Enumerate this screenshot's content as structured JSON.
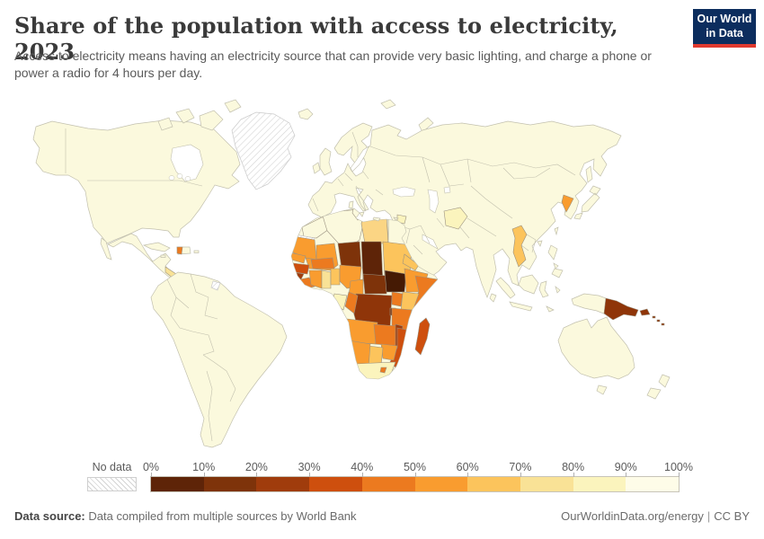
{
  "header": {
    "title": "Share of the population with access to electricity, 2023",
    "subtitle": "Access to electricity means having an electricity source that can provide very basic lighting, and charge a phone or power a radio for 4 hours per day.",
    "logo": {
      "line1": "Our World",
      "line2": "in Data",
      "bg_color": "#0c2d5e",
      "accent_color": "#e0392f"
    }
  },
  "legend": {
    "no_data_label": "No data",
    "ticks": [
      "0%",
      "10%",
      "20%",
      "30%",
      "40%",
      "50%",
      "60%",
      "70%",
      "80%",
      "90%",
      "100%"
    ],
    "bin_colors": [
      "#5e2408",
      "#7e330a",
      "#a03c0c",
      "#ce4f0e",
      "#ec7a1f",
      "#f99c2f",
      "#fcc45c",
      "#f9e296",
      "#fbf4bd",
      "#fefce8"
    ]
  },
  "footer": {
    "datasource_label": "Data source:",
    "datasource_value": "Data compiled from multiple sources by World Bank",
    "link": "OurWorldinData.org/energy",
    "separator": "|",
    "license": "CC BY"
  },
  "map": {
    "ocean_color": "#ffffff",
    "default_land_color": "#fbf9dd",
    "border_color": "#c2c0ae",
    "no_data_color": "#ffffff"
  },
  "chart_data": {
    "type": "choropleth",
    "title": "Share of the population with access to electricity, 2023",
    "unit": "% of population with electricity access",
    "year": 2023,
    "bins": [
      "0-10%",
      "10-20%",
      "20-30%",
      "30-40%",
      "40-50%",
      "50-60%",
      "60-70%",
      "70-80%",
      "80-90%",
      "90-100%"
    ],
    "default_region_value": "90-100%",
    "regions": {
      "greenland": {
        "label": "Greenland",
        "value": "No data",
        "color": "#ffffff"
      },
      "western_sahara": {
        "label": "Western Sahara",
        "value": "No data",
        "color": "#ffffff"
      },
      "french_guiana": {
        "label": "French Guiana",
        "value": "No data",
        "color": "#ffffff"
      },
      "south_sudan": {
        "label": "South Sudan",
        "value": "0-10%",
        "color": "#451a04"
      },
      "chad": {
        "label": "Chad",
        "value": "0-10%",
        "color": "#5e2408"
      },
      "niger": {
        "label": "Niger",
        "value": "10-20%",
        "color": "#7e330a"
      },
      "car": {
        "label": "Central African Republic",
        "value": "10-20%",
        "color": "#7e330a"
      },
      "burundi": {
        "label": "Burundi",
        "value": "10-20%",
        "color": "#7e330a"
      },
      "drc": {
        "label": "Democratic Republic of Congo",
        "value": "20-30%",
        "color": "#8f3509"
      },
      "papua_new_guinea": {
        "label": "Papua New Guinea",
        "value": "20-30%",
        "color": "#8f3509"
      },
      "solomon_islands": {
        "label": "Solomon Islands",
        "value": "20-30%",
        "color": "#8f3509"
      },
      "sierra_leone": {
        "label": "Sierra Leone",
        "value": "20-30%",
        "color": "#a03c0c"
      },
      "malawi": {
        "label": "Malawi",
        "value": "20-30%",
        "color": "#a03c0c"
      },
      "guinea": {
        "label": "Guinea",
        "value": "30-40%",
        "color": "#ce4f0e"
      },
      "mozambique": {
        "label": "Mozambique",
        "value": "30-40%",
        "color": "#ce4f0e"
      },
      "madagascar": {
        "label": "Madagascar",
        "value": "30-40%",
        "color": "#ce4f0e"
      },
      "liberia": {
        "label": "Liberia",
        "value": "40-50%",
        "color": "#ec7a1f"
      },
      "burkina_faso": {
        "label": "Burkina Faso",
        "value": "40-50%",
        "color": "#ec7a1f"
      },
      "somalia": {
        "label": "Somalia",
        "value": "40-50%",
        "color": "#ec7a1f"
      },
      "uganda": {
        "label": "Uganda",
        "value": "40-50%",
        "color": "#ec7a1f"
      },
      "tanzania": {
        "label": "Tanzania",
        "value": "40-50%",
        "color": "#ec7a1f"
      },
      "zambia": {
        "label": "Zambia",
        "value": "40-50%",
        "color": "#ec7a1f"
      },
      "congo": {
        "label": "Congo",
        "value": "40-50%",
        "color": "#ec7a1f"
      },
      "lesotho": {
        "label": "Lesotho",
        "value": "40-50%",
        "color": "#ec7a1f"
      },
      "haiti": {
        "label": "Haiti",
        "value": "40-50%",
        "color": "#ec7a1f"
      },
      "mauritania": {
        "label": "Mauritania",
        "value": "50-60%",
        "color": "#f99c2f"
      },
      "mali": {
        "label": "Mali",
        "value": "50-60%",
        "color": "#f99c2f"
      },
      "senegal": {
        "label": "Senegal",
        "value": "50-60%",
        "color": "#f99c2f"
      },
      "ivory_coast": {
        "label": "Cote d'Ivoire",
        "value": "50-60%",
        "color": "#f99c2f"
      },
      "nigeria": {
        "label": "Nigeria",
        "value": "50-60%",
        "color": "#f99c2f"
      },
      "cameroon": {
        "label": "Cameroon",
        "value": "50-60%",
        "color": "#f99c2f"
      },
      "ethiopia": {
        "label": "Ethiopia",
        "value": "50-60%",
        "color": "#f99c2f"
      },
      "angola": {
        "label": "Angola",
        "value": "50-60%",
        "color": "#f99c2f"
      },
      "zimbabwe": {
        "label": "Zimbabwe",
        "value": "50-60%",
        "color": "#f99c2f"
      },
      "namibia": {
        "label": "Namibia",
        "value": "50-60%",
        "color": "#f99c2f"
      },
      "north_korea": {
        "label": "North Korea",
        "value": "50-60%",
        "color": "#f99c2f"
      },
      "sudan": {
        "label": "Sudan",
        "value": "60-70%",
        "color": "#fcc45c"
      },
      "eritrea": {
        "label": "Eritrea",
        "value": "60-70%",
        "color": "#fcc45c"
      },
      "kenya": {
        "label": "Kenya",
        "value": "60-70%",
        "color": "#fcc45c"
      },
      "botswana": {
        "label": "Botswana",
        "value": "60-70%",
        "color": "#fcc45c"
      },
      "togo_benin": {
        "label": "Togo / Benin",
        "value": "60-70%",
        "color": "#fcc45c"
      },
      "myanmar": {
        "label": "Myanmar",
        "value": "60-70%",
        "color": "#fcc45c"
      },
      "libya": {
        "label": "Libya",
        "value": "70-80%",
        "color": "#fbd584"
      },
      "ghana": {
        "label": "Ghana",
        "value": "70-80%",
        "color": "#f9e296"
      },
      "nicaragua": {
        "label": "Nicaragua / Honduras",
        "value": "70-80%",
        "color": "#f9e296"
      },
      "yemen": {
        "label": "Yemen",
        "value": "70-80%",
        "color": "#f9e296"
      },
      "gabon": {
        "label": "Gabon",
        "value": "80-90%",
        "color": "#fbf4bd"
      },
      "south_africa": {
        "label": "South Africa",
        "value": "80-90%",
        "color": "#fbf4bd"
      },
      "afghanistan": {
        "label": "Afghanistan",
        "value": "80-90%",
        "color": "#fbf4bd"
      },
      "syria": {
        "label": "Syria",
        "value": "80-90%",
        "color": "#fbf4bd"
      }
    }
  }
}
